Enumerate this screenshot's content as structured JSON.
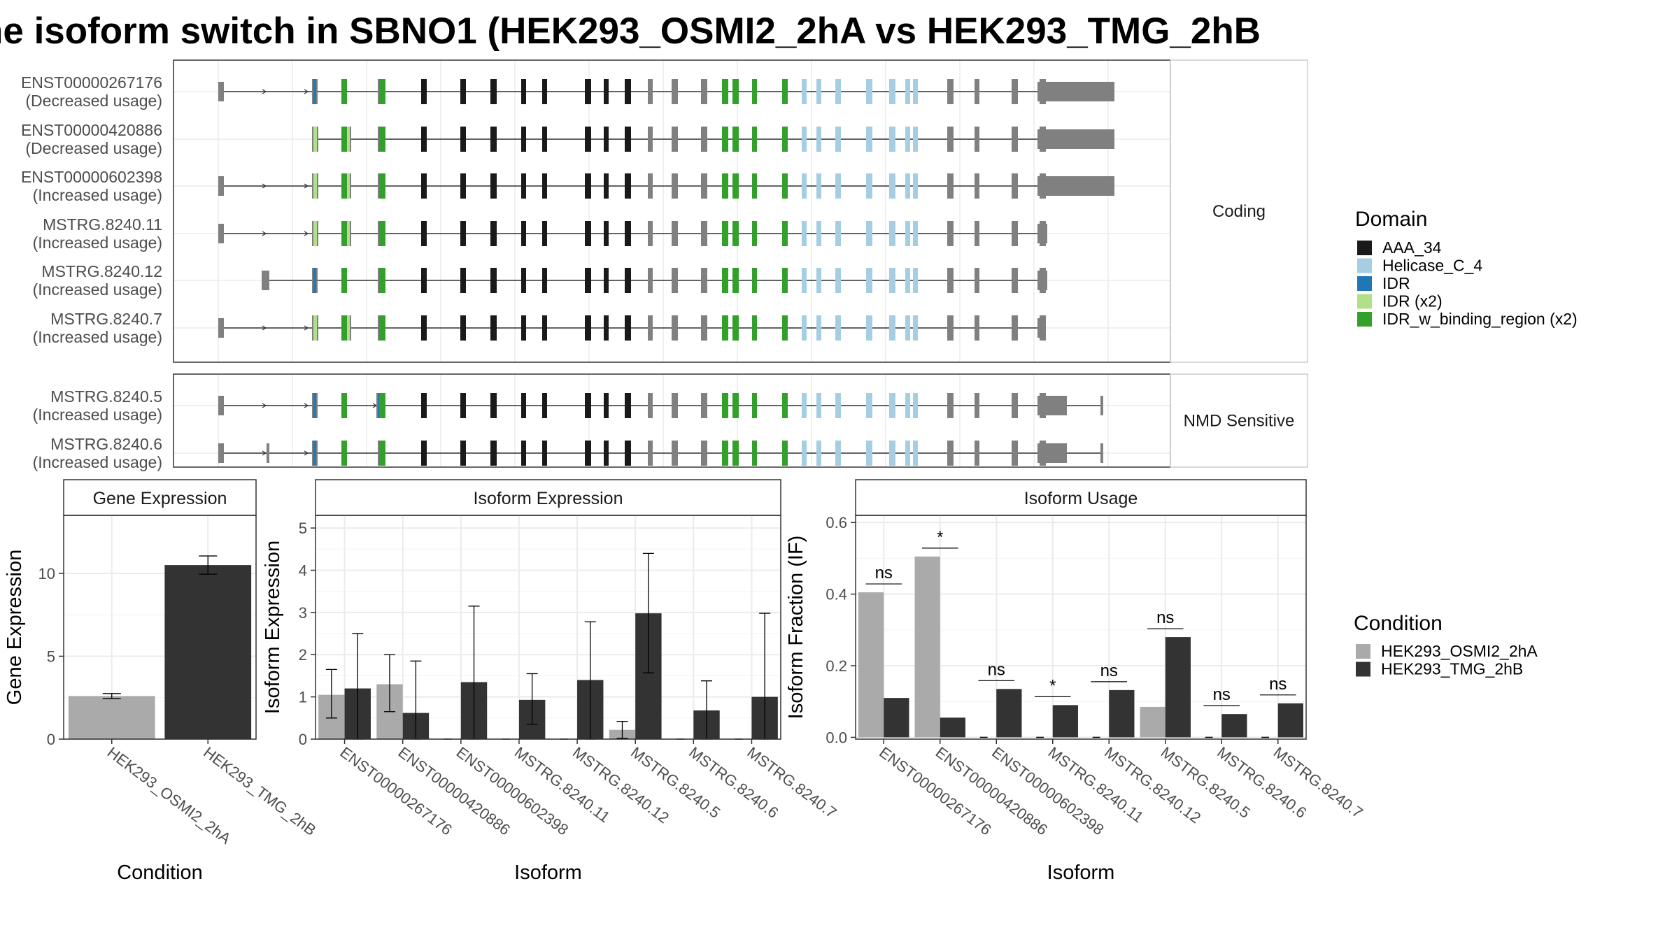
{
  "title": "he isoform switch in SBNO1 (HEK293_OSMI2_2hA vs HEK293_TMG_2hB",
  "colors": {
    "axis_text": "#4d4d4d",
    "panel_border": "#333333",
    "strip_bg": "#ffffff",
    "grid_major": "#ebebeb",
    "grid_minor": "#f5f5f5",
    "intron": "#333333",
    "exon_default": "#808080",
    "cond_a": "#aaaaaa",
    "cond_b": "#333333"
  },
  "structure": {
    "sections": [
      {
        "label": "Coding",
        "transcripts": [
          {
            "id": "ENST00000267176",
            "usage": "(Decreased usage)",
            "shape": "A",
            "start_exon": 0,
            "tail": "long"
          },
          {
            "id": "ENST00000420886",
            "usage": "(Decreased usage)",
            "shape": "B",
            "start_exon": 2,
            "tail": "long"
          },
          {
            "id": "ENST00000602398",
            "usage": "(Increased usage)",
            "shape": "B",
            "start_exon": 0,
            "tail": "long"
          },
          {
            "id": "MSTRG.8240.11",
            "usage": "(Increased usage)",
            "shape": "B",
            "start_exon": 0,
            "tail": "short"
          },
          {
            "id": "MSTRG.8240.12",
            "usage": "(Increased usage)",
            "shape": "A",
            "start_exon": 1,
            "tail": "short"
          },
          {
            "id": "MSTRG.8240.7",
            "usage": "(Increased usage)",
            "shape": "B",
            "start_exon": 0,
            "tail": "line"
          }
        ]
      },
      {
        "label": "NMD Sensitive",
        "transcripts": [
          {
            "id": "MSTRG.8240.5",
            "usage": "(Increased usage)",
            "shape": "N1",
            "start_exon": 0,
            "tail": "nmd"
          },
          {
            "id": "MSTRG.8240.6",
            "usage": "(Increased usage)",
            "shape": "N2",
            "start_exon": 0,
            "tail": "nmd"
          }
        ]
      }
    ],
    "domain_legend": {
      "title": "Domain",
      "entries": [
        {
          "name": "AAA_34",
          "color": "#1a1a1a"
        },
        {
          "name": "Helicase_C_4",
          "color": "#a6cee3"
        },
        {
          "name": "IDR",
          "color": "#1f78b4"
        },
        {
          "name": "IDR (x2)",
          "color": "#b2df8a"
        },
        {
          "name": "IDR_w_binding_region (x2)",
          "color": "#33a02c"
        }
      ]
    }
  },
  "chart_data": [
    {
      "type": "bar",
      "title": "Gene Expression",
      "xlabel": "Condition",
      "ylabel": "Gene Expression",
      "categories": [
        "HEK293_OSMI2_2hA",
        "HEK293_TMG_2hB"
      ],
      "values": [
        2.6,
        10.5
      ],
      "errors": [
        [
          2.45,
          2.75
        ],
        [
          9.95,
          11.05
        ]
      ],
      "ylim": [
        0,
        13.5
      ],
      "yticks": [
        0,
        5,
        10
      ],
      "grid": true
    },
    {
      "type": "bar",
      "title": "Isoform Expression",
      "xlabel": "Isoform",
      "ylabel": "Isoform Expression",
      "categories": [
        "ENST00000267176",
        "ENST00000420886",
        "ENST00000602398",
        "MSTRG.8240.11",
        "MSTRG.8240.12",
        "MSTRG.8240.5",
        "MSTRG.8240.6",
        "MSTRG.8240.7"
      ],
      "series": [
        {
          "name": "HEK293_OSMI2_2hA",
          "values": [
            1.05,
            1.3,
            0,
            0,
            0,
            0.22,
            0,
            0
          ],
          "errors": [
            [
              0.5,
              1.65
            ],
            [
              0.65,
              2.0
            ],
            [
              0,
              0
            ],
            [
              0,
              0
            ],
            [
              0,
              0
            ],
            [
              0.02,
              0.42
            ],
            [
              0,
              0
            ],
            [
              0,
              0
            ]
          ]
        },
        {
          "name": "HEK293_TMG_2hB",
          "values": [
            1.2,
            0.62,
            1.35,
            0.93,
            1.4,
            2.98,
            0.68,
            1.0
          ],
          "errors": [
            [
              0,
              2.5
            ],
            [
              0,
              1.85
            ],
            [
              0,
              3.15
            ],
            [
              0.35,
              1.55
            ],
            [
              0,
              2.78
            ],
            [
              1.57,
              4.4
            ],
            [
              0,
              1.38
            ],
            [
              0,
              2.98
            ]
          ]
        }
      ],
      "ylim": [
        0,
        5.3
      ],
      "yticks": [
        0,
        1,
        2,
        3,
        4,
        5
      ],
      "grid": true
    },
    {
      "type": "bar",
      "title": "Isoform Usage",
      "xlabel": "Isoform",
      "ylabel": "Isoform Fraction (IF)",
      "categories": [
        "ENST00000267176",
        "ENST00000420886",
        "ENST00000602398",
        "MSTRG.8240.11",
        "MSTRG.8240.12",
        "MSTRG.8240.5",
        "MSTRG.8240.6",
        "MSTRG.8240.7"
      ],
      "series": [
        {
          "name": "HEK293_OSMI2_2hA",
          "values": [
            0.405,
            0.505,
            0,
            0,
            0,
            0.085,
            0,
            0
          ]
        },
        {
          "name": "HEK293_TMG_2hB",
          "values": [
            0.11,
            0.055,
            0.135,
            0.09,
            0.132,
            0.28,
            0.065,
            0.095
          ]
        }
      ],
      "significance": [
        "ns",
        "*",
        "ns",
        "*",
        "ns",
        "ns",
        "ns",
        "ns"
      ],
      "ylim": [
        -0.005,
        0.62
      ],
      "yticks": [
        0.0,
        0.2,
        0.4,
        0.6
      ],
      "ytick_labels": [
        "0.0",
        "0.2",
        "0.4",
        "0.6"
      ],
      "grid": true
    }
  ],
  "condition_legend": {
    "title": "Condition",
    "entries": [
      {
        "name": "HEK293_OSMI2_2hA",
        "color": "#aaaaaa"
      },
      {
        "name": "HEK293_TMG_2hB",
        "color": "#333333"
      }
    ]
  }
}
